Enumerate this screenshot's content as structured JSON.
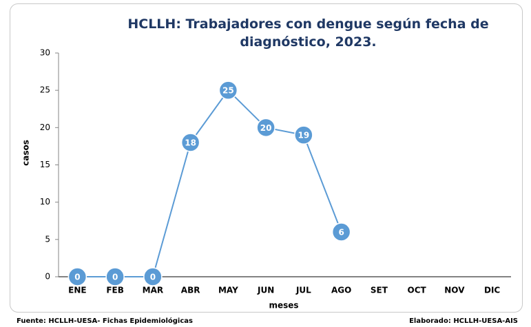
{
  "chart_data": {
    "type": "line",
    "title": "HCLLH: Trabajadores con dengue según fecha de diagnóstico, 2023.",
    "x_label": "meses",
    "y_label": "casos",
    "categories": [
      "ENE",
      "FEB",
      "MAR",
      "ABR",
      "MAY",
      "JUN",
      "JUL",
      "AGO",
      "SET",
      "OCT",
      "NOV",
      "DIC"
    ],
    "values": [
      0,
      0,
      0,
      18,
      25,
      20,
      19,
      6,
      null,
      null,
      null,
      null
    ],
    "color": "#5b9bd5",
    "ylim": [
      0,
      30
    ],
    "yticks": [
      0,
      5,
      10,
      15,
      20,
      25,
      30
    ],
    "grid": false,
    "source": "Fuente: HCLLH-UESA- Fichas Epidemiológicas",
    "credit": "Elaborado: HCLLH-UESA-AIS"
  }
}
